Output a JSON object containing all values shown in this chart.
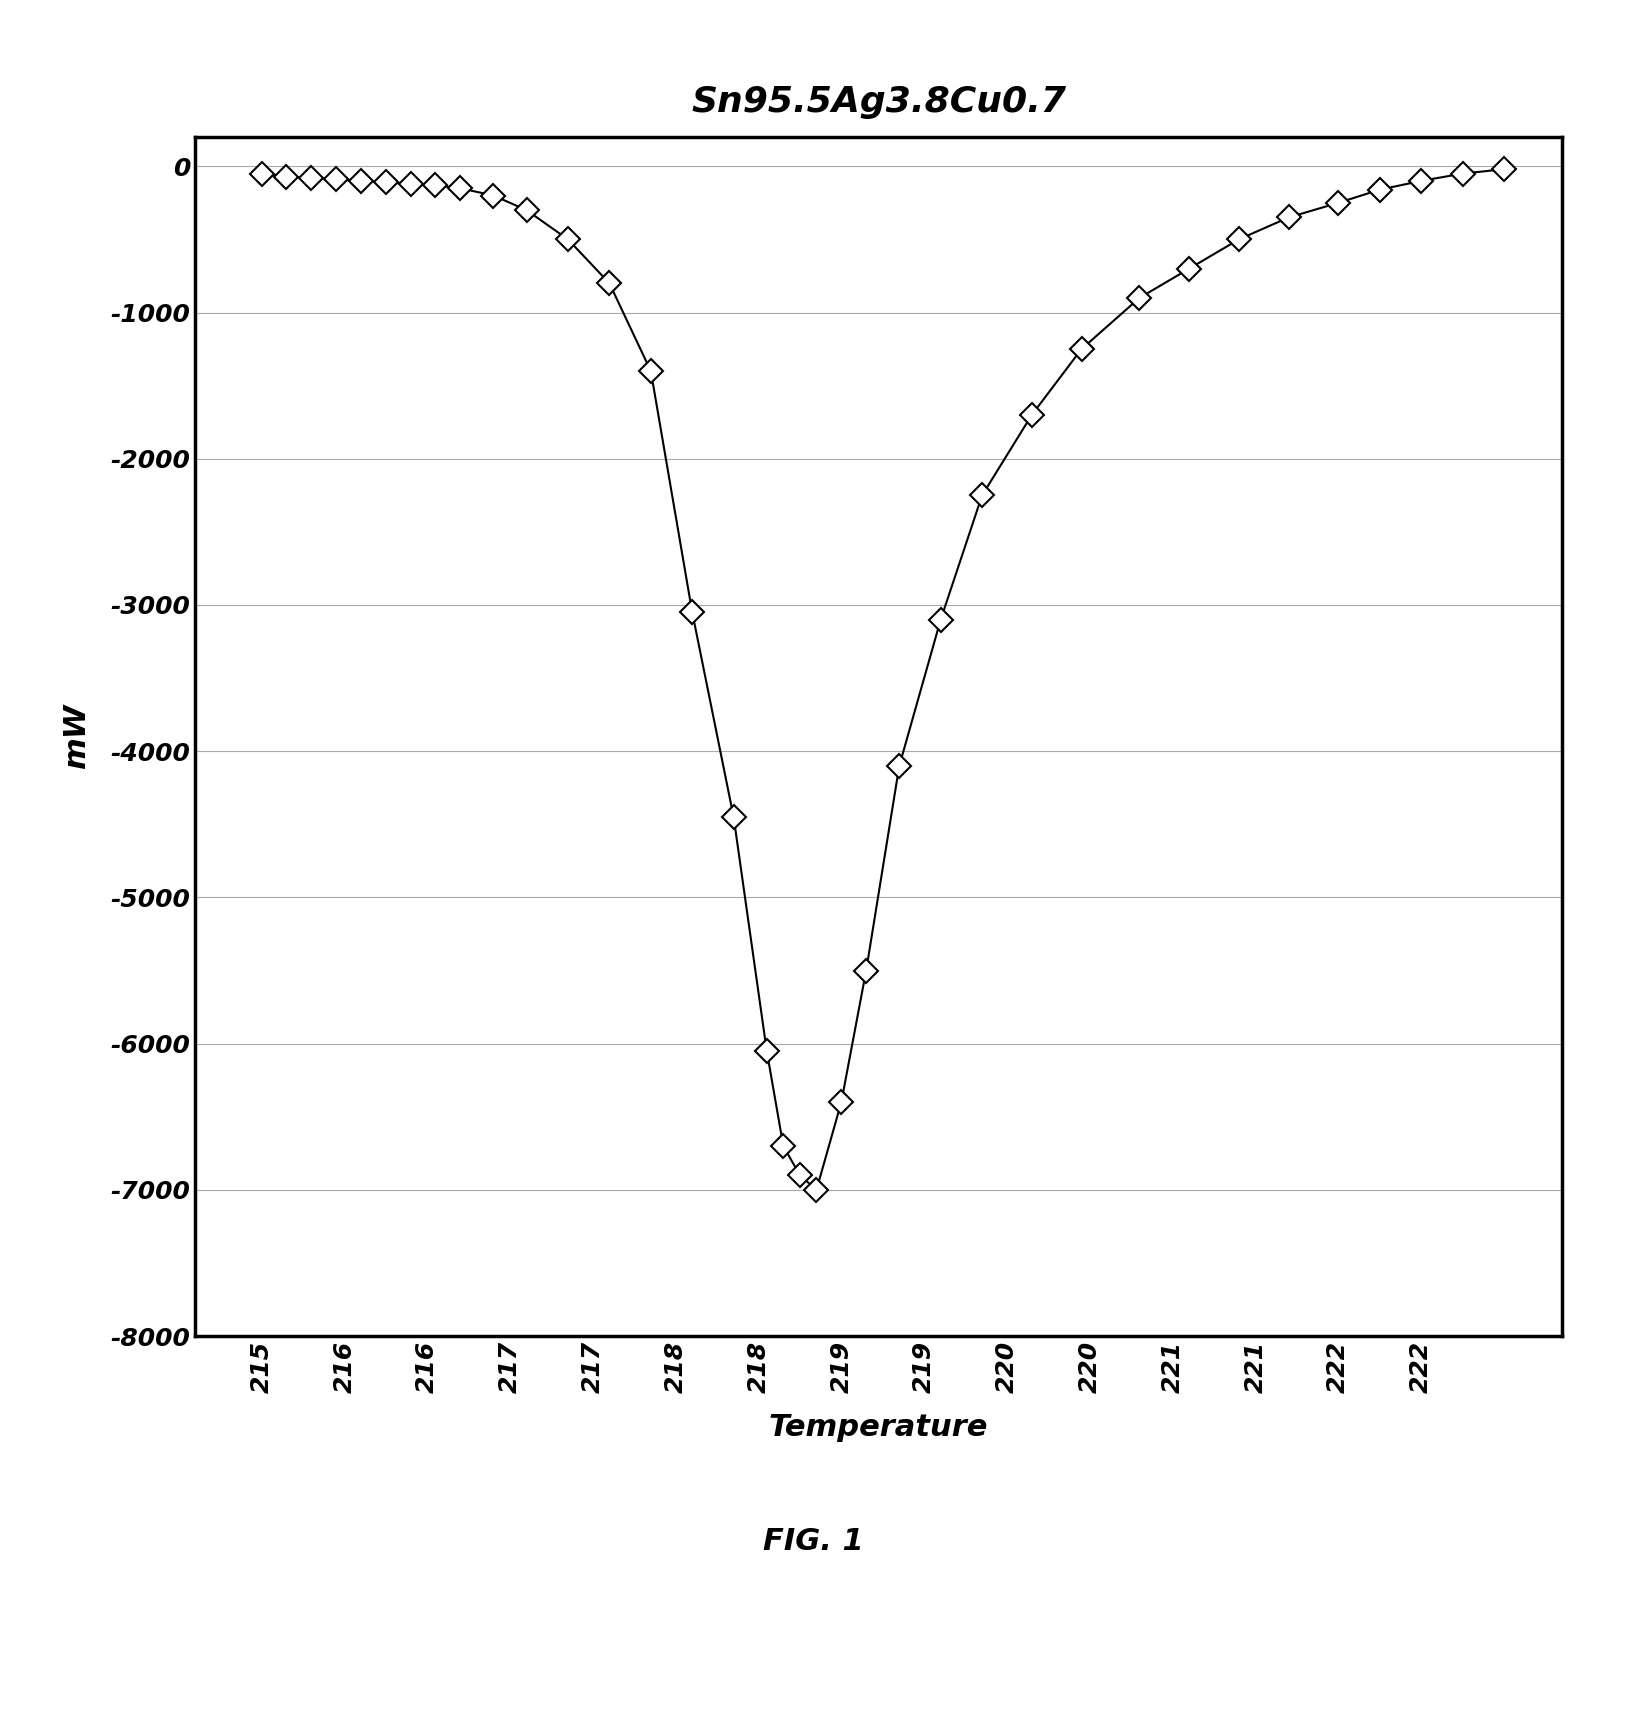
{
  "title": "Sn95.5Ag3.8Cu0.7",
  "xlabel": "Temperature",
  "ylabel": "mW",
  "fig_caption": "FIG. 1",
  "ylim": [
    -8000,
    200
  ],
  "yticks": [
    0,
    -1000,
    -2000,
    -3000,
    -4000,
    -5000,
    -6000,
    -7000,
    -8000
  ],
  "x_tick_positions": [
    215.0,
    215.5,
    216.0,
    216.5,
    217.0,
    217.5,
    218.0,
    218.5,
    219.0,
    219.5,
    220.0,
    220.5,
    221.0,
    221.5,
    222.0,
    222.5
  ],
  "x_tick_labels": [
    "215",
    "216",
    "216",
    "217",
    "217",
    "218",
    "218",
    "219",
    "219",
    "220",
    "220",
    "221",
    "221",
    "222",
    "222",
    ""
  ],
  "x_data": [
    215.0,
    215.15,
    215.3,
    215.45,
    215.6,
    215.75,
    215.9,
    216.05,
    216.2,
    216.4,
    216.6,
    216.85,
    217.1,
    217.35,
    217.6,
    217.85,
    218.05,
    218.15,
    218.25,
    218.35,
    218.5,
    218.65,
    218.85,
    219.1,
    219.35,
    219.65,
    219.95,
    220.3,
    220.6,
    220.9,
    221.2,
    221.5,
    221.75,
    222.0,
    222.25,
    222.5
  ],
  "y_data": [
    -50,
    -70,
    -80,
    -90,
    -100,
    -110,
    -120,
    -130,
    -150,
    -200,
    -300,
    -500,
    -800,
    -1400,
    -3050,
    -4450,
    -6050,
    -6700,
    -6900,
    -7000,
    -6400,
    -5500,
    -4100,
    -3100,
    -2250,
    -1700,
    -1250,
    -900,
    -700,
    -500,
    -350,
    -250,
    -160,
    -100,
    -50,
    -20
  ],
  "marker_style": "D",
  "marker_size": 12,
  "marker_facecolor": "white",
  "marker_edgecolor": "black",
  "line_color": "black",
  "line_width": 1.5,
  "grid_color": "#aaaaaa",
  "background_color": "white",
  "title_fontsize": 26,
  "axis_label_fontsize": 22,
  "tick_fontsize": 18,
  "caption_fontsize": 22,
  "xlim": [
    214.6,
    222.85
  ]
}
